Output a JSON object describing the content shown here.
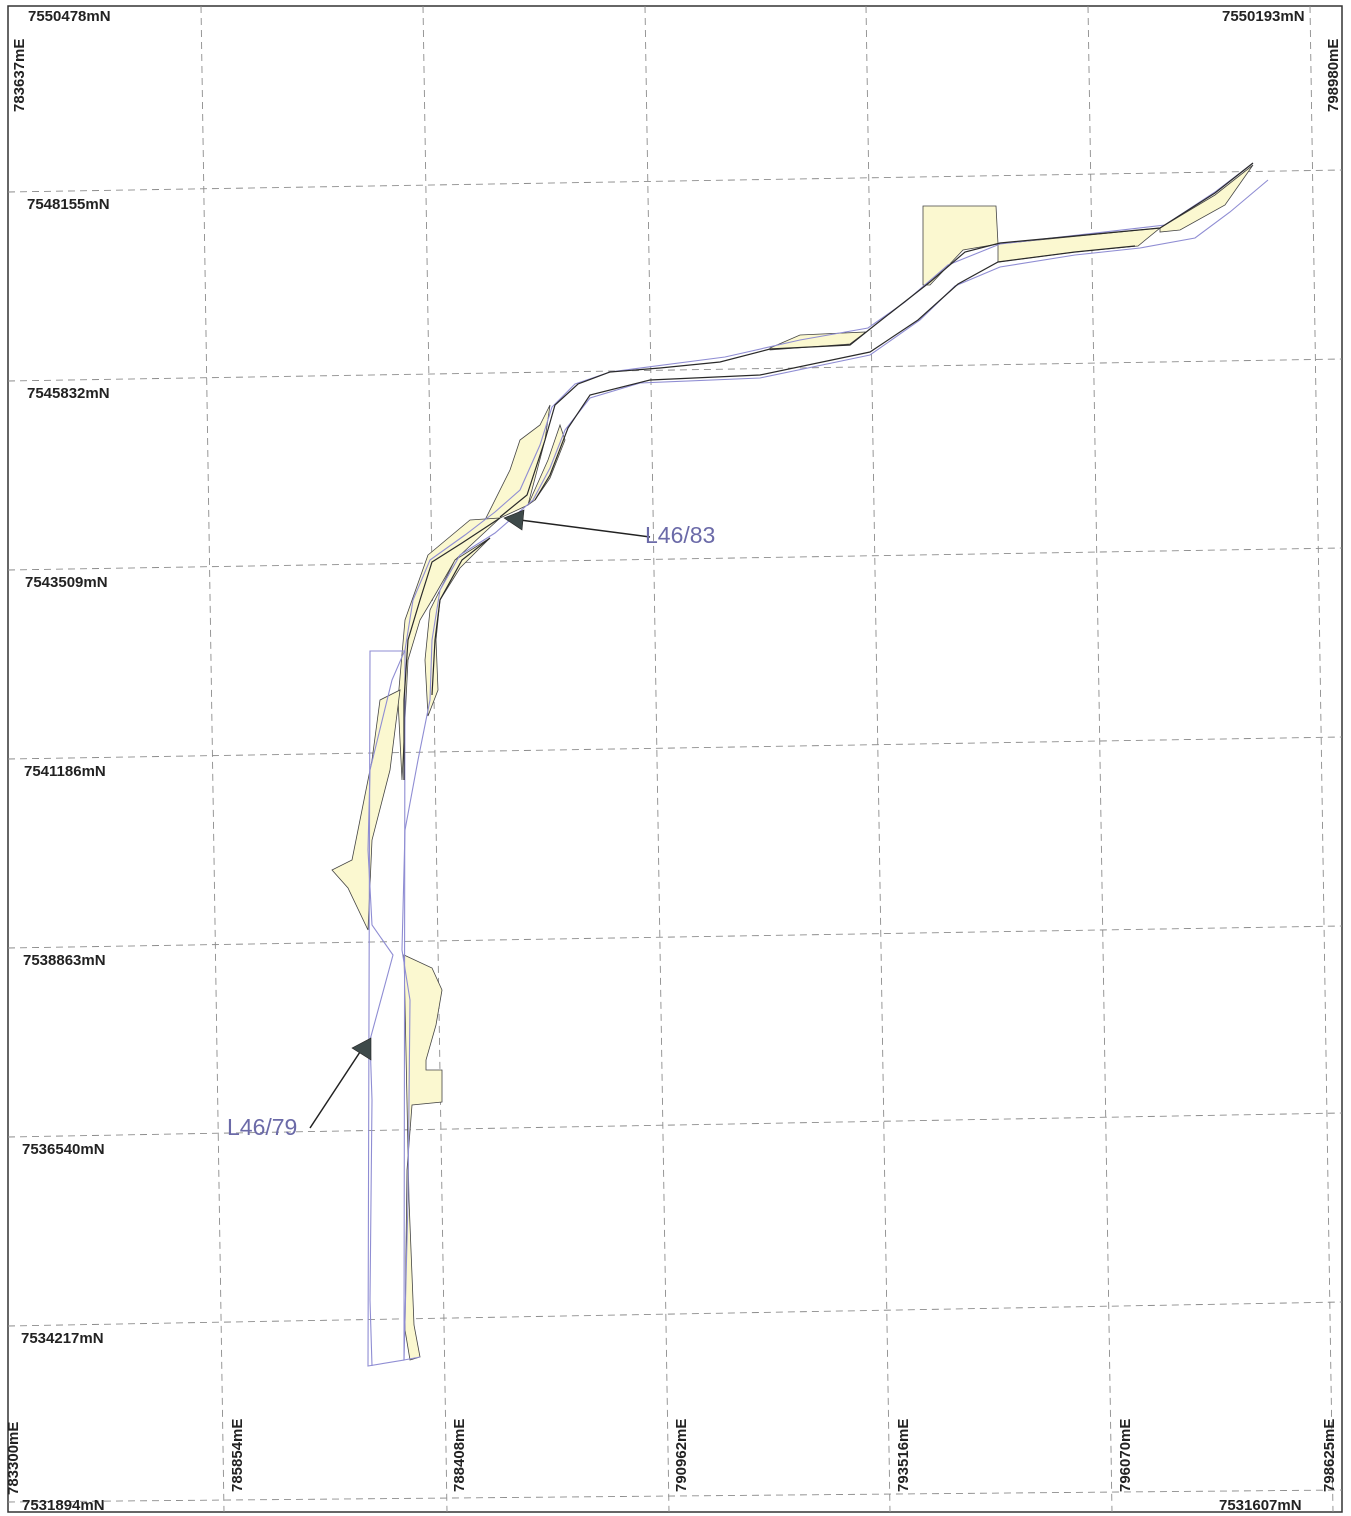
{
  "map": {
    "corner_labels": {
      "top_left_n": "7550478mN",
      "top_right_n": "7550193mN",
      "bottom_left_n": "7531894mN",
      "bottom_right_n": "7531607mN",
      "top_left_e": "783637mE",
      "top_right_e": "798980mE"
    },
    "northing_labels": [
      "7548155mN",
      "7545832mN",
      "7543509mN",
      "7541186mN",
      "7538863mN",
      "7536540mN",
      "7534217mN"
    ],
    "easting_labels": [
      "783300mE",
      "785854mE",
      "788408mE",
      "790962mE",
      "793516mE",
      "796070mE",
      "798625mE"
    ],
    "leases": {
      "north": "L46/83",
      "south": "L46/79"
    },
    "colors": {
      "yellow_fill": "#fbf8d0",
      "lease_outline": "#8f8dd3",
      "label_color": "#6b6aa8",
      "grid": "#8c8c8c"
    }
  }
}
